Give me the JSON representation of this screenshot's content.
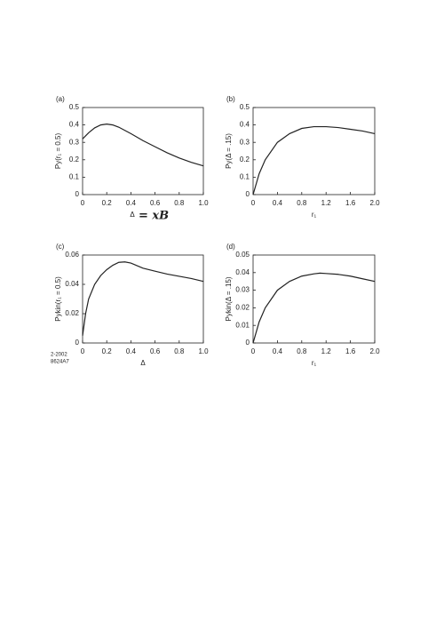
{
  "chart_data": [
    {
      "type": "line",
      "panel_label": "(a)",
      "y_label": "Py(r₁ = 0.5)",
      "x_label": "Δ",
      "annotation": "= xB",
      "x": [
        0,
        0.05,
        0.1,
        0.15,
        0.2,
        0.25,
        0.3,
        0.4,
        0.5,
        0.6,
        0.7,
        0.8,
        0.9,
        1.0
      ],
      "values": [
        0.32,
        0.355,
        0.383,
        0.4,
        0.405,
        0.4,
        0.387,
        0.35,
        0.31,
        0.275,
        0.24,
        0.21,
        0.185,
        0.165
      ],
      "color": "#222222",
      "xlim": [
        0,
        1
      ],
      "xticks": [
        0,
        0.2,
        0.4,
        0.6,
        0.8,
        {
          "value": 1,
          "label": "1.0"
        }
      ],
      "ylim": [
        0,
        0.5
      ],
      "yticks": [
        0,
        0.1,
        0.2,
        0.3,
        0.4,
        0.5
      ]
    },
    {
      "type": "line",
      "panel_label": "(b)",
      "y_label": "Py(Δ = .15)",
      "x_label": "r₁",
      "x": [
        0,
        0.1,
        0.2,
        0.4,
        0.6,
        0.8,
        1.0,
        1.2,
        1.4,
        1.6,
        1.8,
        2.0
      ],
      "values": [
        0,
        0.12,
        0.2,
        0.3,
        0.35,
        0.38,
        0.39,
        0.39,
        0.385,
        0.375,
        0.365,
        0.35
      ],
      "color": "#222222",
      "xlim": [
        0,
        2
      ],
      "xticks": [
        0,
        0.4,
        0.8,
        1.2,
        1.6,
        {
          "value": 2,
          "label": "2.0"
        }
      ],
      "ylim": [
        0,
        0.5
      ],
      "yticks": [
        0,
        0.1,
        0.2,
        0.3,
        0.4,
        0.5
      ]
    },
    {
      "type": "line",
      "panel_label": "(c)",
      "y_label": "Pykin(r₁ = 0.5)",
      "x_label": "Δ",
      "x": [
        0,
        0.025,
        0.05,
        0.1,
        0.15,
        0.2,
        0.25,
        0.3,
        0.35,
        0.4,
        0.5,
        0.6,
        0.7,
        0.8,
        0.9,
        1.0
      ],
      "values": [
        0.005,
        0.02,
        0.03,
        0.04,
        0.046,
        0.05,
        0.053,
        0.055,
        0.0553,
        0.0545,
        0.051,
        0.049,
        0.047,
        0.0455,
        0.044,
        0.042
      ],
      "color": "#222222",
      "xlim": [
        0,
        1
      ],
      "xticks": [
        0,
        0.2,
        0.4,
        0.6,
        0.8,
        {
          "value": 1,
          "label": "1.0"
        }
      ],
      "ylim": [
        0,
        0.06
      ],
      "yticks": [
        0,
        0.02,
        0.04,
        0.06
      ]
    },
    {
      "type": "line",
      "panel_label": "(d)",
      "y_label": "Pykin(Δ = .15)",
      "x_label": "r₁",
      "x": [
        0,
        0.1,
        0.2,
        0.4,
        0.6,
        0.8,
        1.0,
        1.1,
        1.2,
        1.4,
        1.6,
        1.8,
        2.0
      ],
      "values": [
        0,
        0.012,
        0.02,
        0.03,
        0.035,
        0.038,
        0.0393,
        0.0397,
        0.0395,
        0.039,
        0.038,
        0.0365,
        0.035
      ],
      "color": "#222222",
      "xlim": [
        0,
        2
      ],
      "xticks": [
        0,
        0.4,
        0.8,
        1.2,
        1.6,
        {
          "value": 2,
          "label": "2.0"
        }
      ],
      "ylim": [
        0,
        0.05
      ],
      "yticks": [
        0,
        0.01,
        0.02,
        0.03,
        0.04,
        0.05
      ]
    }
  ],
  "figure_code": [
    "2-2002",
    "8624A7"
  ]
}
